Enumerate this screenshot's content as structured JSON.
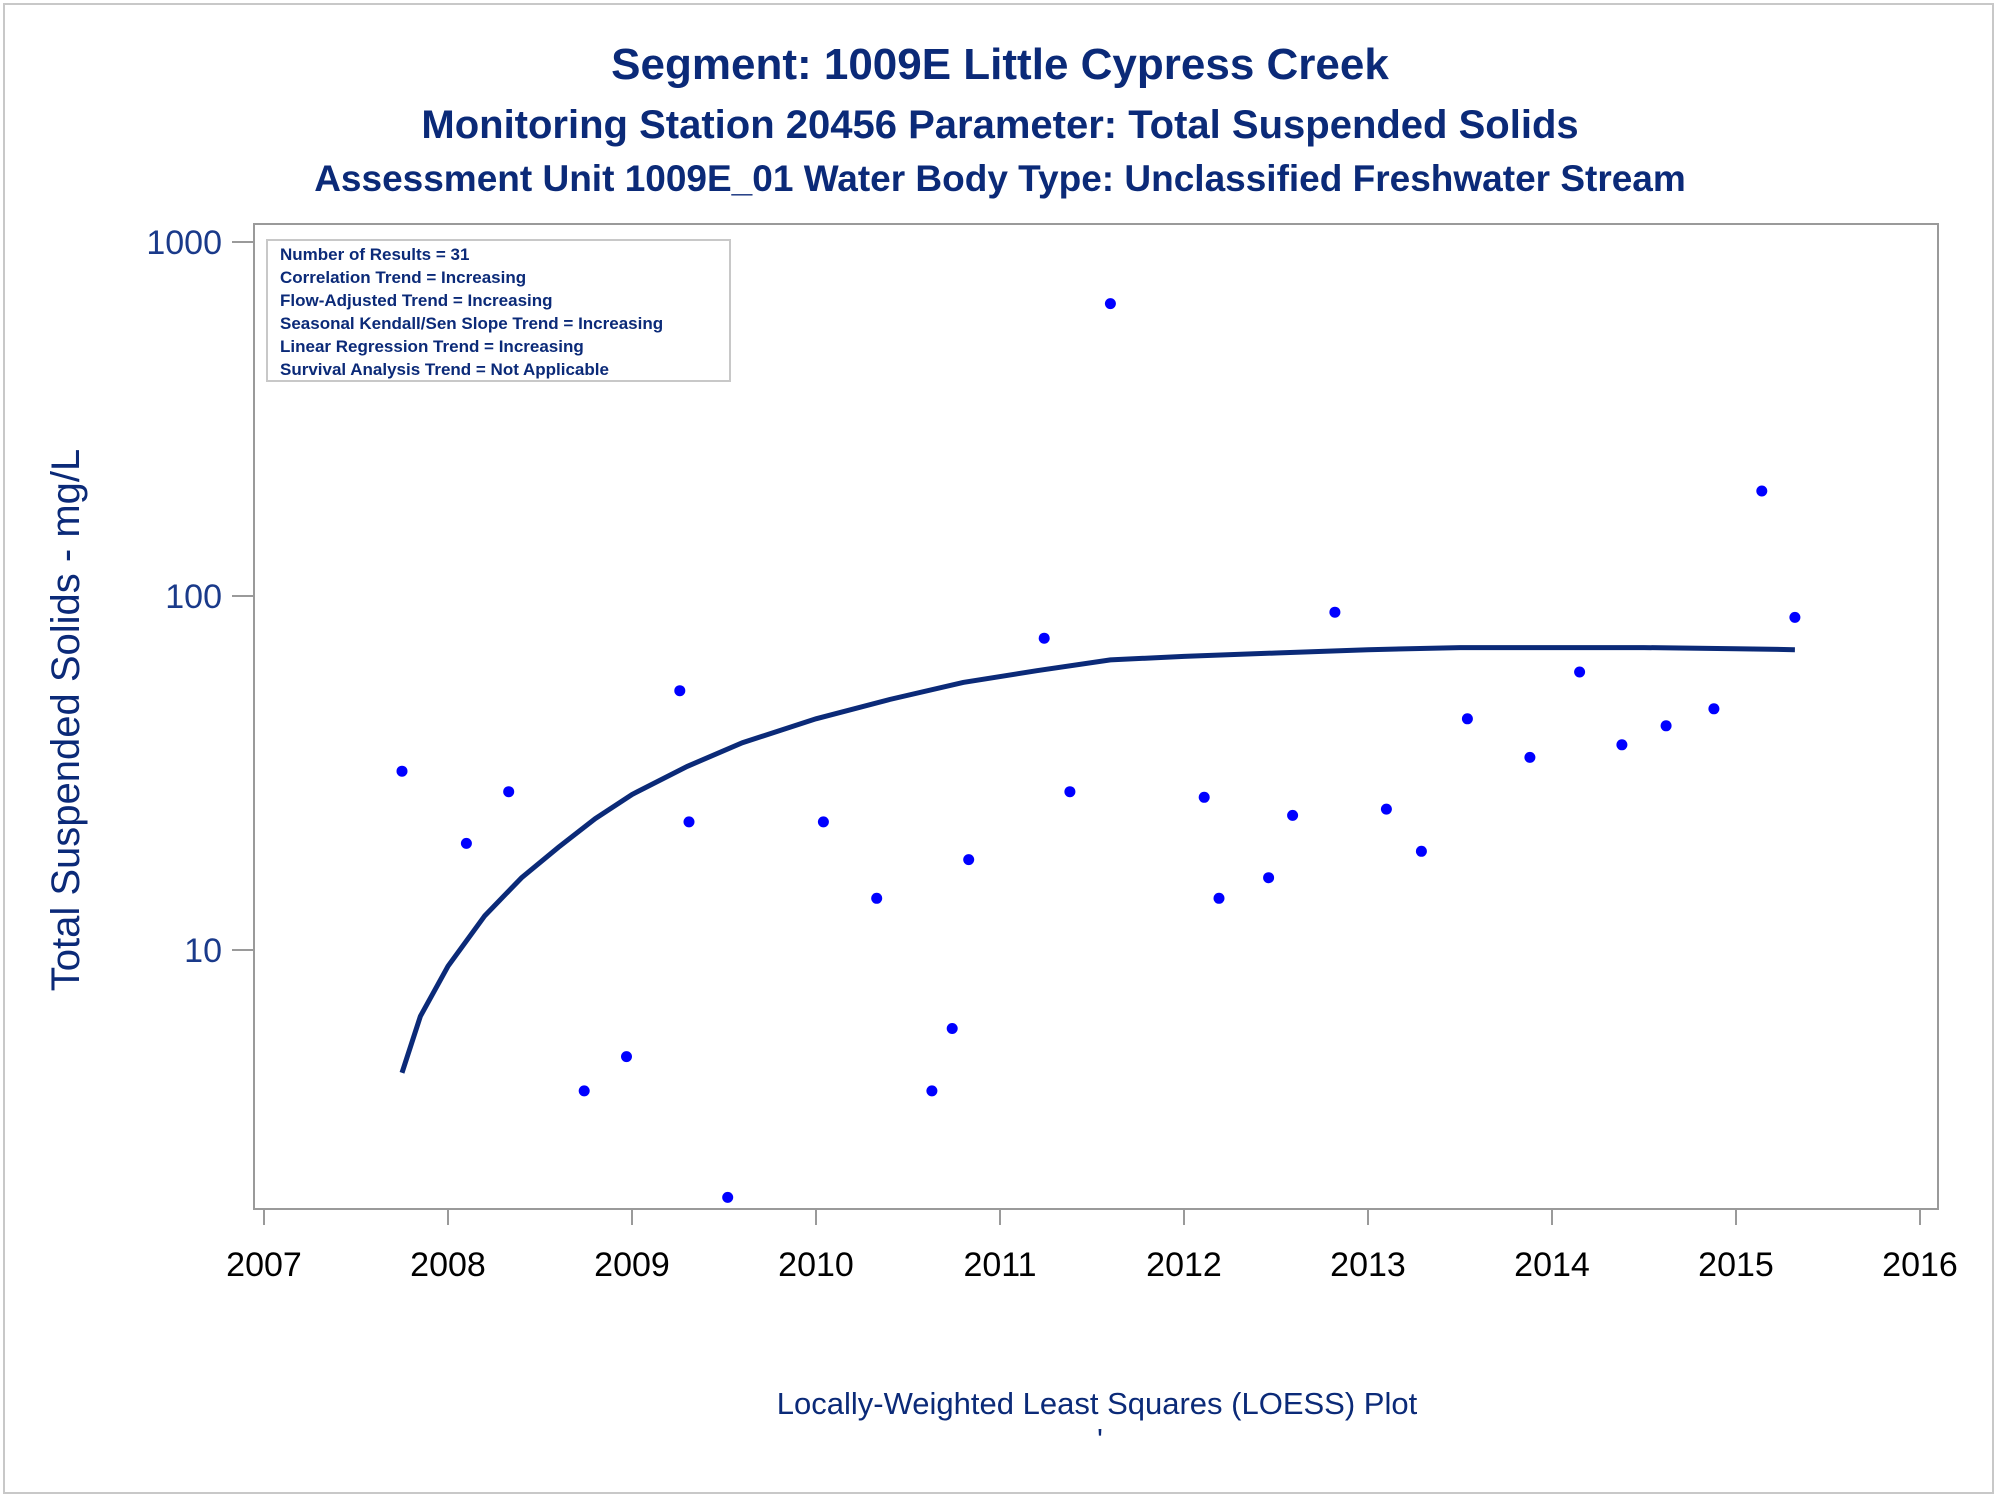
{
  "chart_data": {
    "type": "scatter",
    "title": "Segment: 1009E  Little Cypress Creek",
    "subtitle": "Monitoring Station 20456 Parameter: Total Suspended Solids",
    "subtitle2": "Assessment Unit 1009E_01   Water Body Type: Unclassified Freshwater Stream",
    "xlabel": "",
    "ylabel": "Total Suspended Solids - mg/L",
    "footnote": "Locally-Weighted Least Squares (LOESS) Plot",
    "footnote_mark": "'",
    "x_ticks": [
      "2007",
      "2008",
      "2009",
      "2010",
      "2011",
      "2012",
      "2013",
      "2014",
      "2015",
      "2016"
    ],
    "y_ticks": [
      "10",
      "100",
      "1000"
    ],
    "y_scale": "log",
    "xlim": [
      2007,
      2016
    ],
    "ylim": [
      2,
      1000
    ],
    "grid": false,
    "legend_placement": "top-left",
    "annotations": [
      "Number of Results = 31",
      "Correlation Trend = Increasing",
      "Flow-Adjusted Trend = Increasing",
      "Seasonal Kendall/Sen Slope Trend = Increasing",
      "Linear Regression Trend = Increasing",
      "Survival Analysis Trend = Not Applicable"
    ],
    "points": [
      {
        "x": 2007.75,
        "y": 32
      },
      {
        "x": 2008.1,
        "y": 20
      },
      {
        "x": 2008.33,
        "y": 28
      },
      {
        "x": 2008.74,
        "y": 4
      },
      {
        "x": 2008.97,
        "y": 5
      },
      {
        "x": 2009.26,
        "y": 54
      },
      {
        "x": 2009.31,
        "y": 23
      },
      {
        "x": 2009.52,
        "y": 2
      },
      {
        "x": 2010.04,
        "y": 23
      },
      {
        "x": 2010.33,
        "y": 14
      },
      {
        "x": 2010.63,
        "y": 4
      },
      {
        "x": 2010.74,
        "y": 6
      },
      {
        "x": 2010.83,
        "y": 18
      },
      {
        "x": 2011.24,
        "y": 76
      },
      {
        "x": 2011.38,
        "y": 28
      },
      {
        "x": 2011.6,
        "y": 670
      },
      {
        "x": 2012.11,
        "y": 27
      },
      {
        "x": 2012.19,
        "y": 14
      },
      {
        "x": 2012.46,
        "y": 16
      },
      {
        "x": 2012.59,
        "y": 24
      },
      {
        "x": 2012.82,
        "y": 90
      },
      {
        "x": 2013.1,
        "y": 25
      },
      {
        "x": 2013.29,
        "y": 19
      },
      {
        "x": 2013.54,
        "y": 45
      },
      {
        "x": 2013.88,
        "y": 35
      },
      {
        "x": 2014.15,
        "y": 61
      },
      {
        "x": 2014.38,
        "y": 38
      },
      {
        "x": 2014.62,
        "y": 43
      },
      {
        "x": 2014.88,
        "y": 48
      },
      {
        "x": 2015.14,
        "y": 198
      },
      {
        "x": 2015.32,
        "y": 87
      }
    ],
    "loess": {
      "x": [
        2007.75,
        2007.85,
        2008.0,
        2008.2,
        2008.4,
        2008.6,
        2008.8,
        2009.0,
        2009.3,
        2009.6,
        2010.0,
        2010.4,
        2010.8,
        2011.2,
        2011.6,
        2012.0,
        2012.5,
        2013.0,
        2013.5,
        2014.0,
        2014.5,
        2015.0,
        2015.32
      ],
      "y": [
        4.5,
        6.5,
        9.0,
        12.5,
        16.0,
        19.5,
        23.5,
        27.5,
        33.0,
        38.5,
        45.0,
        51.0,
        57.0,
        61.5,
        66.0,
        67.5,
        69.0,
        70.5,
        71.5,
        71.5,
        71.5,
        71.0,
        70.5
      ]
    },
    "colors": {
      "points": "#0000ff",
      "loess": "#0b2a78",
      "text": "#0b2a78",
      "axis": "#9a9a9a"
    }
  }
}
